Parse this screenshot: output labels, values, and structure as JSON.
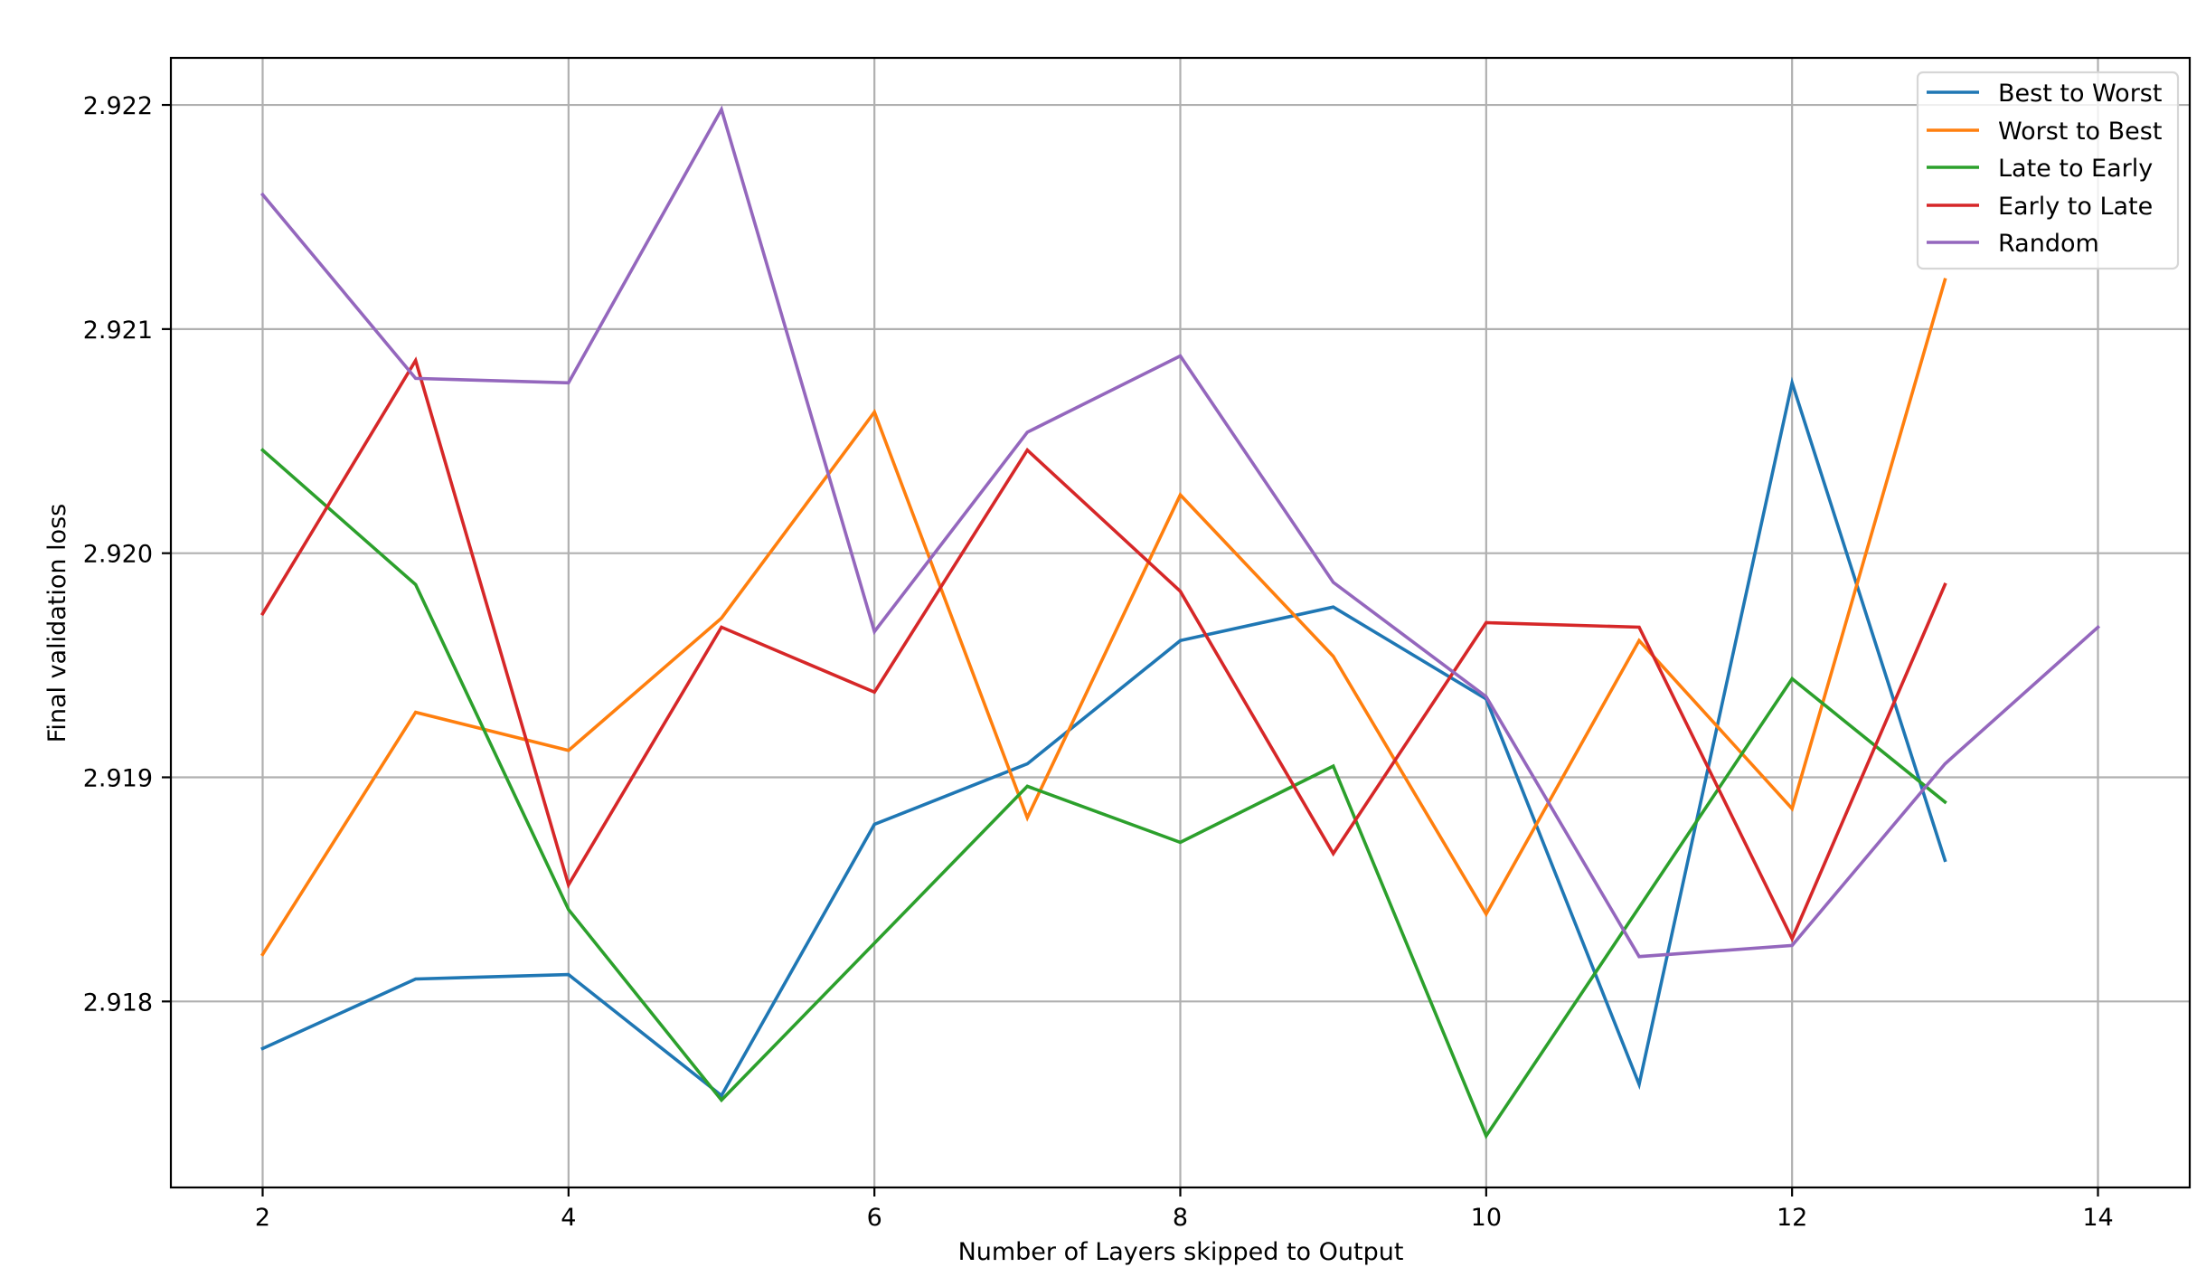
{
  "chart_data": {
    "type": "line",
    "title": "",
    "xlabel": "Number of Layers skipped to Output",
    "ylabel": "Final validation loss",
    "xlim": [
      1.4,
      14.6
    ],
    "ylim": [
      2.91717,
      2.92221
    ],
    "grid": true,
    "legend_position": "upper right",
    "x_ticks": [
      2,
      4,
      6,
      8,
      10,
      12,
      14
    ],
    "x_tick_labels": [
      "2",
      "4",
      "6",
      "8",
      "10",
      "12",
      "14"
    ],
    "y_ticks": [
      2.918,
      2.919,
      2.92,
      2.921,
      2.922
    ],
    "y_tick_labels": [
      "2.918",
      "2.919",
      "2.920",
      "2.921",
      "2.922"
    ],
    "series": [
      {
        "name": "Best to Worst",
        "color": "#1f77b4",
        "x": [
          2,
          3,
          4,
          5,
          6,
          7,
          8,
          9,
          10,
          11,
          12,
          13
        ],
        "values": [
          2.91779,
          2.9181,
          2.91812,
          2.91758,
          2.91879,
          2.91906,
          2.91961,
          2.91976,
          2.91935,
          2.91763,
          2.92076,
          2.91863
        ]
      },
      {
        "name": "Worst to Best",
        "color": "#ff7f0e",
        "x": [
          2,
          3,
          4,
          5,
          6,
          7,
          8,
          9,
          10,
          11,
          12,
          13
        ],
        "values": [
          2.91821,
          2.91929,
          2.91912,
          2.91971,
          2.92063,
          2.91882,
          2.92026,
          2.91954,
          2.91839,
          2.91961,
          2.91886,
          2.92122
        ]
      },
      {
        "name": "Late to Early",
        "color": "#2ca02c",
        "x": [
          2,
          3,
          4,
          5,
          6,
          7,
          8,
          9,
          10,
          11,
          12,
          13
        ],
        "values": [
          2.92046,
          2.91986,
          2.91841,
          2.91756,
          2.91826,
          2.91896,
          2.91871,
          2.91905,
          2.9174,
          2.91842,
          2.91944,
          2.91889
        ]
      },
      {
        "name": "Early to Late",
        "color": "#d62728",
        "x": [
          2,
          3,
          4,
          5,
          6,
          7,
          8,
          9,
          10,
          11,
          12,
          13
        ],
        "values": [
          2.91973,
          2.92086,
          2.91852,
          2.91967,
          2.91938,
          2.92046,
          2.91983,
          2.91866,
          2.91969,
          2.91967,
          2.91828,
          2.91986
        ]
      },
      {
        "name": "Random",
        "color": "#9467bd",
        "x": [
          2,
          3,
          4,
          5,
          6,
          7,
          8,
          9,
          10,
          11,
          12,
          13,
          14
        ],
        "values": [
          2.9216,
          2.92078,
          2.92076,
          2.92198,
          2.91965,
          2.92054,
          2.92088,
          2.91987,
          2.91936,
          2.9182,
          2.91825,
          2.91906,
          2.91967
        ]
      }
    ]
  },
  "axes": {
    "xlabel": "Number of Layers skipped to Output",
    "ylabel": "Final validation loss"
  },
  "legend": {
    "items": [
      {
        "label": "Best to Worst",
        "color": "#1f77b4"
      },
      {
        "label": "Worst to Best",
        "color": "#ff7f0e"
      },
      {
        "label": "Late to Early",
        "color": "#2ca02c"
      },
      {
        "label": "Early to Late",
        "color": "#d62728"
      },
      {
        "label": "Random",
        "color": "#9467bd"
      }
    ]
  }
}
